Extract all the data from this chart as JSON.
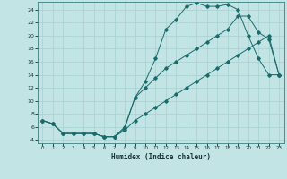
{
  "xlabel": "Humidex (Indice chaleur)",
  "bg_color": "#c2e4e4",
  "grid_color": "#a8d0d0",
  "line_color": "#1a6b6b",
  "xlim": [
    -0.5,
    23.5
  ],
  "ylim": [
    3.5,
    25.2
  ],
  "xticks": [
    0,
    1,
    2,
    3,
    4,
    5,
    6,
    7,
    8,
    9,
    10,
    11,
    12,
    13,
    14,
    15,
    16,
    17,
    18,
    19,
    20,
    21,
    22,
    23
  ],
  "yticks": [
    4,
    6,
    8,
    10,
    12,
    14,
    16,
    18,
    20,
    22,
    24
  ],
  "line1_x": [
    0,
    1,
    2,
    3,
    4,
    5,
    6,
    7,
    8,
    9,
    10,
    11,
    12,
    13,
    14,
    15,
    16,
    17,
    18,
    19,
    20,
    21,
    22,
    23
  ],
  "line1_y": [
    7,
    6.5,
    5,
    5,
    5,
    5,
    4.5,
    4.5,
    6,
    10.5,
    13,
    16.5,
    21,
    22.5,
    24.5,
    25,
    24.5,
    24.5,
    24.8,
    24,
    20,
    16.5,
    14,
    14
  ],
  "line2_x": [
    0,
    1,
    2,
    3,
    4,
    5,
    6,
    7,
    8,
    9,
    10,
    11,
    12,
    13,
    14,
    15,
    16,
    17,
    18,
    19,
    20,
    21,
    22,
    23
  ],
  "line2_y": [
    7,
    6.5,
    5,
    5,
    5,
    5,
    4.5,
    4.5,
    5.8,
    10.5,
    12,
    13.5,
    15,
    16,
    17,
    18,
    19,
    20,
    21,
    23,
    23,
    20.5,
    19.5,
    14
  ],
  "line3_x": [
    0,
    1,
    2,
    3,
    4,
    5,
    6,
    7,
    8,
    9,
    10,
    11,
    12,
    13,
    14,
    15,
    16,
    17,
    18,
    19,
    20,
    21,
    22,
    23
  ],
  "line3_y": [
    7,
    6.5,
    5,
    5,
    5,
    5,
    4.5,
    4.5,
    5.5,
    7,
    8,
    9,
    10,
    11,
    12,
    13,
    14,
    15,
    16,
    17,
    18,
    19,
    20,
    14
  ]
}
